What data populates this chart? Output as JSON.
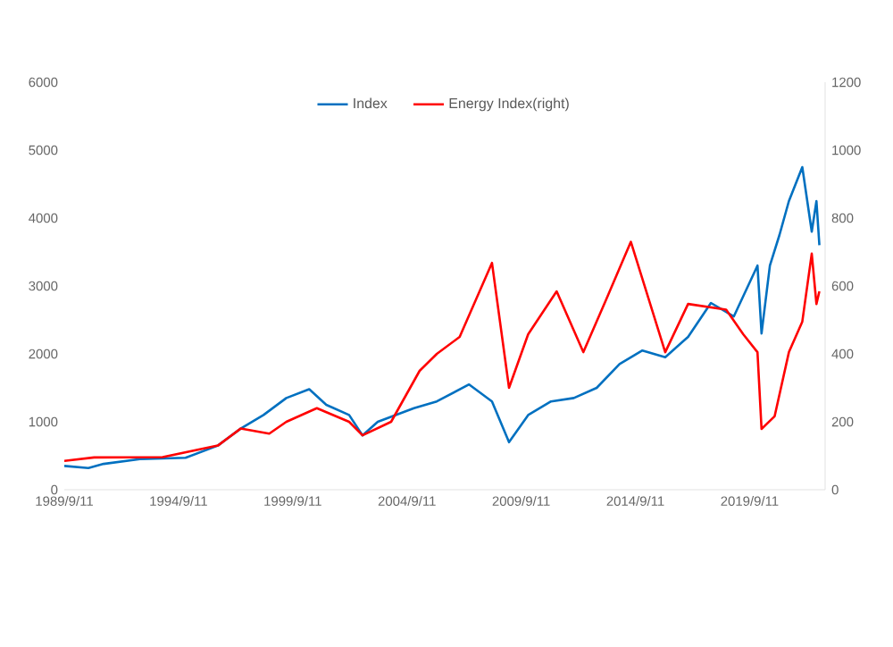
{
  "chart_data": {
    "type": "line",
    "legend": "top",
    "xlim": [
      "1989-09-11",
      "2023-01-01"
    ],
    "xticks": [
      {
        "value": "1989-09-11",
        "label": "1989/9/11"
      },
      {
        "value": "1994-09-11",
        "label": "1994/9/11"
      },
      {
        "value": "1999-09-11",
        "label": "1999/9/11"
      },
      {
        "value": "2004-09-11",
        "label": "2004/9/11"
      },
      {
        "value": "2009-09-11",
        "label": "2009/9/11"
      },
      {
        "value": "2014-09-11",
        "label": "2014/9/11"
      },
      {
        "value": "2019-09-11",
        "label": "2019/9/11"
      }
    ],
    "ylim": [
      0,
      6000
    ],
    "yticks": [
      0,
      1000,
      2000,
      3000,
      4000,
      5000,
      6000
    ],
    "y2lim": [
      0,
      1200
    ],
    "y2ticks": [
      0,
      200,
      400,
      600,
      800,
      1000,
      1200
    ],
    "series": [
      {
        "name": "Index",
        "color": "#0070c0",
        "x": [
          "1989-09-11",
          "1990-10-01",
          "1991-06-01",
          "1993-01-01",
          "1995-01-01",
          "1996-06-01",
          "1997-06-01",
          "1998-06-01",
          "1999-06-01",
          "2000-06-01",
          "2001-03-01",
          "2002-03-01",
          "2002-10-01",
          "2003-06-01",
          "2005-01-01",
          "2006-01-01",
          "2007-06-01",
          "2008-06-01",
          "2009-03-01",
          "2010-01-01",
          "2011-01-01",
          "2012-01-01",
          "2013-01-01",
          "2014-01-01",
          "2015-01-01",
          "2016-01-01",
          "2017-01-01",
          "2018-01-01",
          "2019-01-01",
          "2020-01-15",
          "2020-03-20",
          "2020-08-01",
          "2021-01-01",
          "2021-06-01",
          "2022-01-01",
          "2022-06-01",
          "2022-08-15",
          "2022-10-01"
        ],
        "values": [
          350,
          320,
          380,
          450,
          470,
          650,
          900,
          1100,
          1350,
          1480,
          1250,
          1100,
          800,
          1000,
          1200,
          1300,
          1550,
          1300,
          700,
          1100,
          1300,
          1350,
          1500,
          1850,
          2050,
          1950,
          2250,
          2750,
          2550,
          3300,
          2300,
          3300,
          3750,
          4250,
          4750,
          3800,
          4250,
          3600
        ]
      },
      {
        "name": "Energy Index(right)",
        "color": "#ff0000",
        "axis": "y2",
        "x": [
          "1989-09-11",
          "1991-01-01",
          "1994-01-01",
          "1996-06-01",
          "1997-06-01",
          "1998-09-01",
          "1999-06-01",
          "2000-10-01",
          "2002-03-01",
          "2002-10-01",
          "2004-01-01",
          "2005-04-01",
          "2006-01-01",
          "2007-01-01",
          "2008-06-01",
          "2009-03-01",
          "2010-01-01",
          "2011-04-01",
          "2012-06-01",
          "2013-06-01",
          "2014-07-01",
          "2016-01-01",
          "2017-01-01",
          "2018-09-01",
          "2019-06-01",
          "2020-01-15",
          "2020-03-20",
          "2020-10-15",
          "2021-06-01",
          "2022-01-01",
          "2022-06-01",
          "2022-08-15",
          "2022-10-01"
        ],
        "values": [
          85,
          95,
          96,
          130,
          180,
          165,
          200,
          240,
          200,
          160,
          200,
          350,
          400,
          450,
          668,
          300,
          458,
          584,
          405,
          560,
          730,
          405,
          547,
          530,
          458,
          405,
          179,
          216,
          405,
          495,
          695,
          547,
          584
        ]
      }
    ]
  }
}
